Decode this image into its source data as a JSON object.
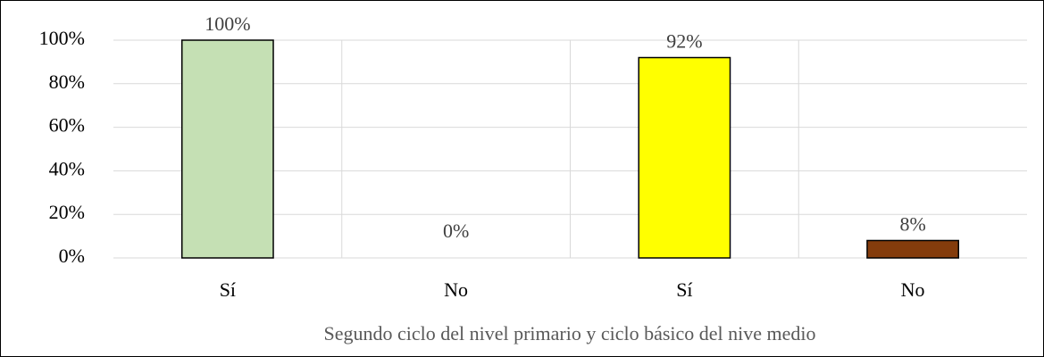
{
  "chart_data": {
    "type": "bar",
    "categories": [
      "Sí",
      "No",
      "Sí",
      "No"
    ],
    "values": [
      100,
      0,
      92,
      8
    ],
    "value_labels": [
      "100%",
      "0%",
      "92%",
      "8%"
    ],
    "colors": [
      "#c5e0b4",
      "#843c0c",
      "#ffff00",
      "#843c0c"
    ],
    "x_label": "Segundo ciclo del nivel primario y ciclo básico del nive medio",
    "ylim": [
      0,
      100
    ],
    "yticks": [
      {
        "value": 0,
        "label": "0%"
      },
      {
        "value": 20,
        "label": "20%"
      },
      {
        "value": 40,
        "label": "40%"
      },
      {
        "value": 60,
        "label": "60%"
      },
      {
        "value": 80,
        "label": "80%"
      },
      {
        "value": 100,
        "label": "100%"
      }
    ],
    "grid": true
  }
}
